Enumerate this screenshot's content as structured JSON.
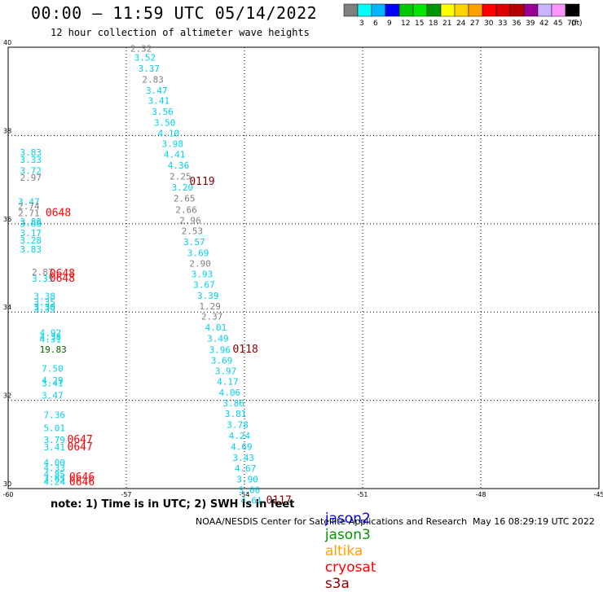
{
  "header": {
    "title": "00:00 – 11:59 UTC 05/14/2022",
    "subtitle": "12 hour collection of altimeter wave heights"
  },
  "color_scale": {
    "bins": [
      {
        "label": "",
        "color": "#7f7f7f"
      },
      {
        "label": "3",
        "color": "#00ffff"
      },
      {
        "label": "6",
        "color": "#00b4ff"
      },
      {
        "label": "9",
        "color": "#0000ff"
      },
      {
        "label": "12",
        "color": "#00c800"
      },
      {
        "label": "15",
        "color": "#00e600"
      },
      {
        "label": "18",
        "color": "#009600"
      },
      {
        "label": "21",
        "color": "#ffff00"
      },
      {
        "label": "24",
        "color": "#ffd200"
      },
      {
        "label": "27",
        "color": "#ffa000"
      },
      {
        "label": "30",
        "color": "#ff0000"
      },
      {
        "label": "33",
        "color": "#dc0000"
      },
      {
        "label": "36",
        "color": "#b40000"
      },
      {
        "label": "39",
        "color": "#960096"
      },
      {
        "label": "42",
        "color": "#c8b4ff"
      },
      {
        "label": "45",
        "color": "#ff96ff"
      },
      {
        "label": "70",
        "color": "#000000"
      }
    ],
    "unit_label": "(ft)"
  },
  "chart_data": {
    "type": "scatter",
    "title": "00:00 – 11:59 UTC 05/14/2022",
    "subtitle": "12 hour collection of altimeter wave heights",
    "xlim": [
      -60,
      -45
    ],
    "ylim": [
      30,
      40
    ],
    "x_ticks": [
      "-60",
      "-57",
      "-54",
      "-51",
      "-48",
      "-45"
    ],
    "y_ticks": [
      "30",
      "32",
      "34",
      "36",
      "38",
      "40"
    ],
    "x_tick_values": [
      -60,
      -57,
      -54,
      -51,
      -48,
      -45
    ],
    "y_tick_values": [
      30,
      32,
      34,
      36,
      38,
      40
    ],
    "grid": true,
    "colors": {
      "gray": "#7f7f7f",
      "cyan": "#00d0e8",
      "darkgreen": "#006400",
      "darkred": "#8b0000",
      "red": "#ff0000"
    },
    "points": [
      {
        "x": -56.9,
        "y": 39.9,
        "v": "2.32",
        "c": "gray"
      },
      {
        "x": -56.8,
        "y": 39.7,
        "v": "3.52",
        "c": "cyan"
      },
      {
        "x": -56.7,
        "y": 39.45,
        "v": "3.37",
        "c": "cyan"
      },
      {
        "x": -56.6,
        "y": 39.2,
        "v": "2.83",
        "c": "gray"
      },
      {
        "x": -56.5,
        "y": 38.95,
        "v": "3.47",
        "c": "cyan"
      },
      {
        "x": -56.45,
        "y": 38.72,
        "v": "3.41",
        "c": "cyan"
      },
      {
        "x": -56.35,
        "y": 38.47,
        "v": "3.56",
        "c": "cyan"
      },
      {
        "x": -56.3,
        "y": 38.22,
        "v": "3.50",
        "c": "cyan"
      },
      {
        "x": -56.2,
        "y": 37.98,
        "v": "4.10",
        "c": "cyan"
      },
      {
        "x": -56.1,
        "y": 37.74,
        "v": "3.98",
        "c": "cyan"
      },
      {
        "x": -56.05,
        "y": 37.5,
        "v": "4.41",
        "c": "cyan"
      },
      {
        "x": -55.95,
        "y": 37.25,
        "v": "4.36",
        "c": "cyan"
      },
      {
        "x": -55.9,
        "y": 37.0,
        "v": "2.25",
        "c": "gray"
      },
      {
        "x": -55.85,
        "y": 36.75,
        "v": "3.20",
        "c": "cyan"
      },
      {
        "x": -55.8,
        "y": 36.5,
        "v": "2.65",
        "c": "gray"
      },
      {
        "x": -55.75,
        "y": 36.25,
        "v": "2.66",
        "c": "gray"
      },
      {
        "x": -55.65,
        "y": 36.01,
        "v": "2.96",
        "c": "gray"
      },
      {
        "x": -55.6,
        "y": 35.77,
        "v": "2.53",
        "c": "gray"
      },
      {
        "x": -55.55,
        "y": 35.52,
        "v": "3.57",
        "c": "cyan"
      },
      {
        "x": -55.45,
        "y": 35.27,
        "v": "3.69",
        "c": "cyan"
      },
      {
        "x": -55.4,
        "y": 35.03,
        "v": "2.90",
        "c": "gray"
      },
      {
        "x": -55.35,
        "y": 34.79,
        "v": "3.93",
        "c": "cyan"
      },
      {
        "x": -55.3,
        "y": 34.55,
        "v": "3.67",
        "c": "cyan"
      },
      {
        "x": -55.2,
        "y": 34.3,
        "v": "3.39",
        "c": "cyan"
      },
      {
        "x": -55.15,
        "y": 34.06,
        "v": "1.29",
        "c": "gray"
      },
      {
        "x": -55.1,
        "y": 33.83,
        "v": "2.37",
        "c": "gray"
      },
      {
        "x": -55.0,
        "y": 33.58,
        "v": "4.01",
        "c": "cyan"
      },
      {
        "x": -54.95,
        "y": 33.33,
        "v": "3.49",
        "c": "cyan"
      },
      {
        "x": -54.9,
        "y": 33.07,
        "v": "3.96",
        "c": "cyan"
      },
      {
        "x": -54.85,
        "y": 32.83,
        "v": "3.69",
        "c": "cyan"
      },
      {
        "x": -54.75,
        "y": 32.59,
        "v": "3.97",
        "c": "cyan"
      },
      {
        "x": -54.7,
        "y": 32.35,
        "v": "4.17",
        "c": "cyan"
      },
      {
        "x": -54.65,
        "y": 32.1,
        "v": "4.06",
        "c": "cyan"
      },
      {
        "x": -54.55,
        "y": 31.86,
        "v": "3.86",
        "c": "cyan"
      },
      {
        "x": -54.5,
        "y": 31.62,
        "v": "3.81",
        "c": "cyan"
      },
      {
        "x": -54.45,
        "y": 31.37,
        "v": "3.78",
        "c": "cyan"
      },
      {
        "x": -54.4,
        "y": 31.13,
        "v": "4.24",
        "c": "cyan"
      },
      {
        "x": -54.35,
        "y": 30.88,
        "v": "4.69",
        "c": "cyan"
      },
      {
        "x": -54.3,
        "y": 30.63,
        "v": "3.43",
        "c": "cyan"
      },
      {
        "x": -54.25,
        "y": 30.39,
        "v": "4.67",
        "c": "cyan"
      },
      {
        "x": -54.2,
        "y": 30.14,
        "v": "3.90",
        "c": "cyan"
      },
      {
        "x": -54.15,
        "y": 29.9,
        "v": "3.66",
        "c": "cyan"
      },
      {
        "x": -54.1,
        "y": 29.66,
        "v": "4.61",
        "c": "cyan"
      },
      {
        "x": -59.7,
        "y": 37.55,
        "v": "3.83",
        "c": "cyan"
      },
      {
        "x": -59.7,
        "y": 37.38,
        "v": "3.33",
        "c": "cyan"
      },
      {
        "x": -59.7,
        "y": 37.13,
        "v": "3.72",
        "c": "cyan"
      },
      {
        "x": -59.7,
        "y": 36.97,
        "v": "2.97",
        "c": "gray"
      },
      {
        "x": -59.75,
        "y": 36.43,
        "v": "3.47",
        "c": "cyan"
      },
      {
        "x": -59.75,
        "y": 36.33,
        "v": "2.74",
        "c": "gray"
      },
      {
        "x": -59.75,
        "y": 36.17,
        "v": "2.71",
        "c": "gray"
      },
      {
        "x": -59.7,
        "y": 35.98,
        "v": "3.88",
        "c": "cyan"
      },
      {
        "x": -59.7,
        "y": 35.93,
        "v": "3.68",
        "c": "cyan"
      },
      {
        "x": -59.7,
        "y": 35.72,
        "v": "3.17",
        "c": "cyan"
      },
      {
        "x": -59.7,
        "y": 35.55,
        "v": "3.28",
        "c": "cyan"
      },
      {
        "x": -59.7,
        "y": 35.35,
        "v": "3.83",
        "c": "cyan"
      },
      {
        "x": -59.4,
        "y": 34.83,
        "v": "2.87",
        "c": "gray"
      },
      {
        "x": -59.4,
        "y": 34.69,
        "v": "3.35",
        "c": "cyan"
      },
      {
        "x": -59.35,
        "y": 34.29,
        "v": "3.38",
        "c": "cyan"
      },
      {
        "x": -59.35,
        "y": 34.15,
        "v": "3.35",
        "c": "cyan"
      },
      {
        "x": -59.35,
        "y": 34.04,
        "v": "3.30",
        "c": "cyan"
      },
      {
        "x": -59.35,
        "y": 33.99,
        "v": "3.39",
        "c": "cyan"
      },
      {
        "x": -59.2,
        "y": 33.46,
        "v": "4.92",
        "c": "cyan"
      },
      {
        "x": -59.2,
        "y": 33.37,
        "v": "4.38",
        "c": "cyan"
      },
      {
        "x": -59.2,
        "y": 33.31,
        "v": "4.31",
        "c": "cyan"
      },
      {
        "x": -59.2,
        "y": 33.08,
        "v": "19.83",
        "c": "darkgreen"
      },
      {
        "x": -59.15,
        "y": 32.65,
        "v": "7.50",
        "c": "cyan"
      },
      {
        "x": -59.15,
        "y": 32.38,
        "v": "4.29",
        "c": "cyan"
      },
      {
        "x": -59.15,
        "y": 32.32,
        "v": "3.41",
        "c": "cyan"
      },
      {
        "x": -59.15,
        "y": 32.04,
        "v": "3.47",
        "c": "cyan"
      },
      {
        "x": -59.1,
        "y": 31.6,
        "v": "7.36",
        "c": "cyan"
      },
      {
        "x": -59.1,
        "y": 31.3,
        "v": "5.01",
        "c": "cyan"
      },
      {
        "x": -59.1,
        "y": 31.03,
        "v": "3.79",
        "c": "cyan"
      },
      {
        "x": -59.1,
        "y": 30.87,
        "v": "3.41",
        "c": "cyan"
      },
      {
        "x": -59.1,
        "y": 30.52,
        "v": "4.00",
        "c": "cyan"
      },
      {
        "x": -59.1,
        "y": 30.4,
        "v": "4.33",
        "c": "cyan"
      },
      {
        "x": -59.1,
        "y": 30.25,
        "v": "4.85",
        "c": "cyan"
      },
      {
        "x": -59.1,
        "y": 30.16,
        "v": "3.65",
        "c": "cyan"
      },
      {
        "x": -59.1,
        "y": 30.08,
        "v": "4.24",
        "c": "cyan"
      }
    ],
    "time_labels": [
      {
        "x": -55.4,
        "y": 36.88,
        "v": "0119",
        "c": "darkred"
      },
      {
        "x": -59.05,
        "y": 36.17,
        "v": "0648",
        "c": "red"
      },
      {
        "x": -58.95,
        "y": 34.8,
        "v": "0648",
        "c": "red"
      },
      {
        "x": -58.95,
        "y": 34.69,
        "v": "0648",
        "c": "red"
      },
      {
        "x": -54.3,
        "y": 33.08,
        "v": "0118",
        "c": "darkred"
      },
      {
        "x": -58.5,
        "y": 31.03,
        "v": "0647",
        "c": "red"
      },
      {
        "x": -58.5,
        "y": 30.87,
        "v": "0647",
        "c": "red"
      },
      {
        "x": -58.45,
        "y": 30.18,
        "v": "0646",
        "c": "red"
      },
      {
        "x": -58.45,
        "y": 30.07,
        "v": "0646",
        "c": "red"
      },
      {
        "x": -53.45,
        "y": 29.66,
        "v": "0117",
        "c": "darkred"
      }
    ]
  },
  "note": "note: 1) Time is in UTC; 2) SWH is in feet",
  "satellites": [
    {
      "name": "jason2",
      "color": "#0000ff"
    },
    {
      "name": "jason3",
      "color": "#009600"
    },
    {
      "name": "altika",
      "color": "#ffa000"
    },
    {
      "name": "cryosat",
      "color": "#ff0000"
    },
    {
      "name": "s3a",
      "color": "#8b0000"
    }
  ],
  "footer": {
    "credit": "NOAA/NESDIS Center for Satellite Applications and Research",
    "generated": "May 16 08:29:19 UTC 2022"
  }
}
